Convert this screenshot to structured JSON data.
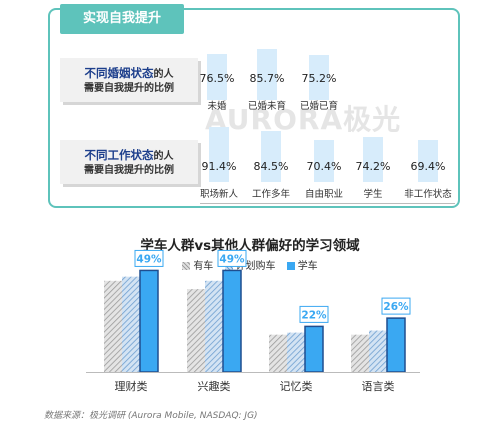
{
  "top_card": {
    "title": "实现自我提升",
    "watermark": "AURORA极光",
    "groups": [
      {
        "label_highlight": "不同婚姻状态",
        "label_rest": "的人",
        "label_line2": "需要自我提升的比例"
      },
      {
        "label_highlight": "不同工作状态",
        "label_rest": "的人",
        "label_line2": "需要自我提升的比例"
      }
    ]
  },
  "chart_data": [
    {
      "type": "bar",
      "categories": [
        "未婚",
        "已婚未育",
        "已婚已育"
      ],
      "values": [
        76.5,
        85.7,
        75.2
      ],
      "value_labels": [
        "76.5%",
        "85.7%",
        "75.2%"
      ],
      "ylim": [
        0,
        100
      ]
    },
    {
      "type": "bar",
      "categories": [
        "职场新人",
        "工作多年",
        "自由职业",
        "学生",
        "非工作状态"
      ],
      "values": [
        91.4,
        84.5,
        70.4,
        74.2,
        69.4
      ],
      "value_labels": [
        "91.4%",
        "84.5%",
        "70.4%",
        "74.2%",
        "69.4%"
      ],
      "ylim": [
        0,
        100
      ]
    },
    {
      "type": "bar",
      "title": "学车人群vs其他人群偏好的学习领域",
      "categories": [
        "理财类",
        "兴趣类",
        "记忆类",
        "语言类"
      ],
      "series": [
        {
          "name": "有车",
          "values": [
            44,
            40,
            18,
            18
          ],
          "color": "#9e9e9e"
        },
        {
          "name": "计划购车",
          "values": [
            46,
            44,
            19,
            20
          ],
          "color": "#8fb7dd"
        },
        {
          "name": "学车",
          "values": [
            49,
            49,
            22,
            26
          ],
          "color": "#3aa8f2"
        }
      ],
      "highlight_labels": [
        "49%",
        "49%",
        "22%",
        "26%"
      ],
      "legend_position": "top",
      "ylim": [
        0,
        55
      ]
    }
  ],
  "source": "数据来源：极光调研 (Aurora Mobile, NASDAQ: JG)"
}
